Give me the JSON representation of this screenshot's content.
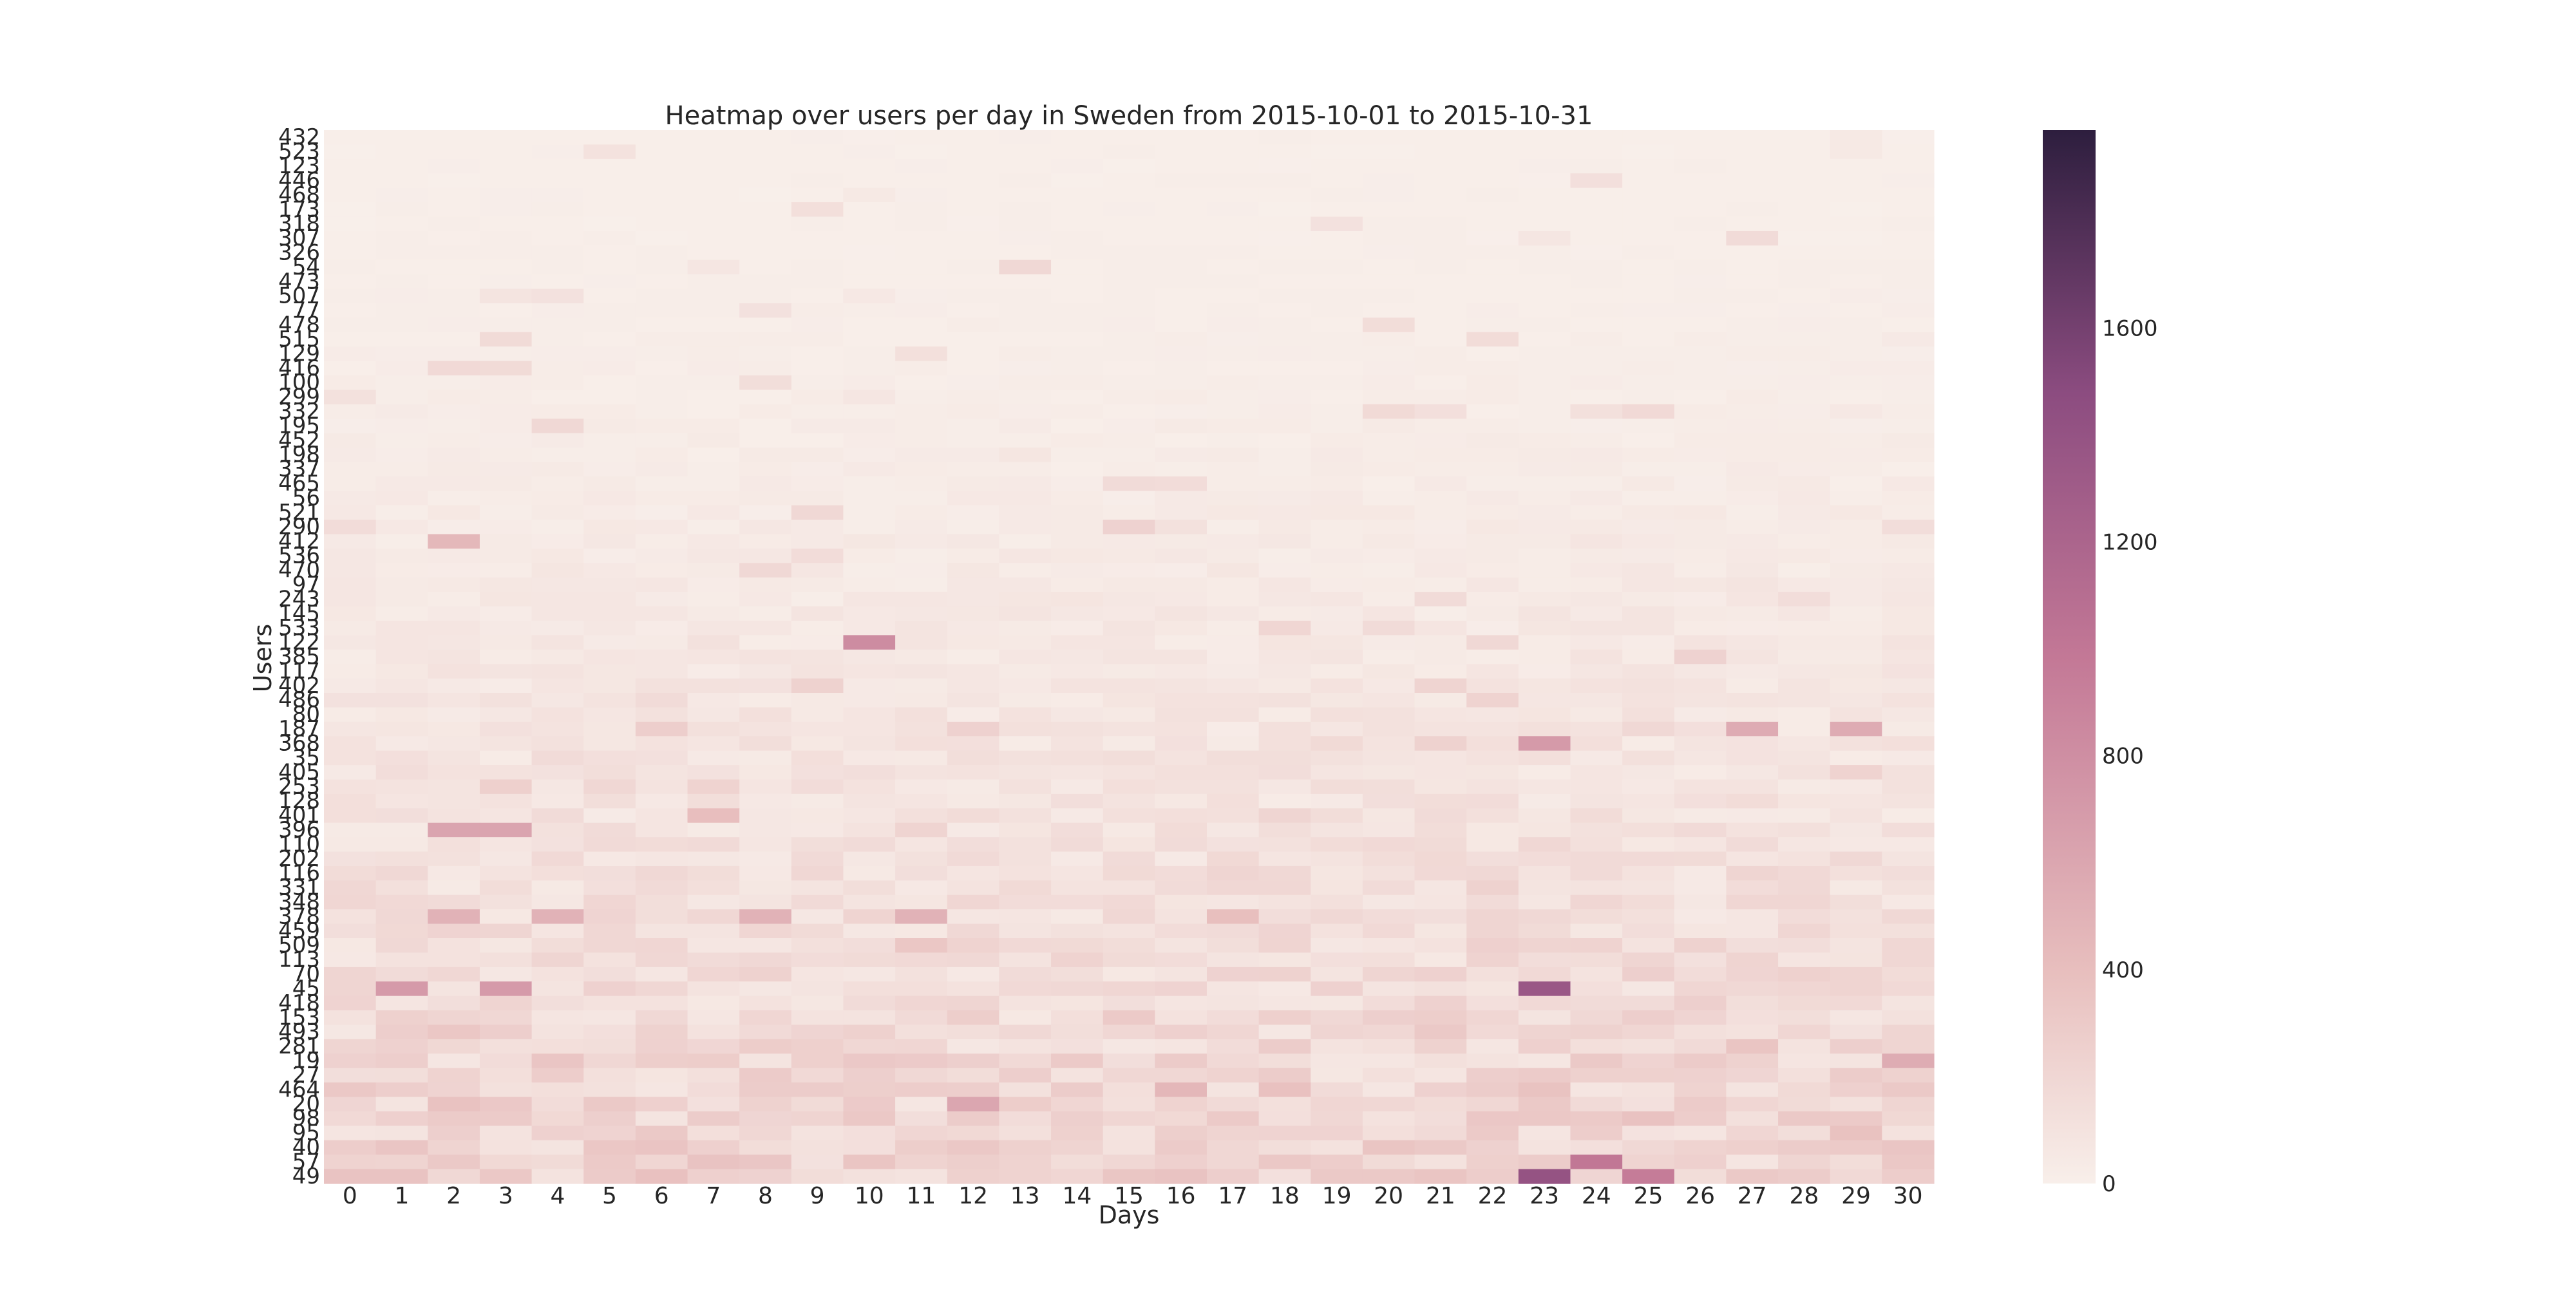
{
  "chart_data": {
    "type": "heatmap",
    "title": "Heatmap over users per day in Sweden from 2015-10-01 to 2015-10-31",
    "xlabel": "Days",
    "ylabel": "Users",
    "x": [
      "0",
      "1",
      "2",
      "3",
      "4",
      "5",
      "6",
      "7",
      "8",
      "9",
      "10",
      "11",
      "12",
      "13",
      "14",
      "15",
      "16",
      "17",
      "18",
      "19",
      "20",
      "21",
      "22",
      "23",
      "24",
      "25",
      "26",
      "27",
      "28",
      "29",
      "30"
    ],
    "y": [
      "432",
      "523",
      "123",
      "446",
      "468",
      "173",
      "318",
      "307",
      "326",
      "54",
      "473",
      "507",
      "77",
      "478",
      "515",
      "129",
      "416",
      "100",
      "299",
      "332",
      "195",
      "452",
      "198",
      "337",
      "465",
      "56",
      "521",
      "290",
      "412",
      "536",
      "470",
      "97",
      "243",
      "145",
      "533",
      "122",
      "385",
      "117",
      "402",
      "486",
      "80",
      "187",
      "368",
      "35",
      "405",
      "253",
      "128",
      "401",
      "396",
      "110",
      "202",
      "116",
      "331",
      "348",
      "378",
      "459",
      "509",
      "113",
      "70",
      "45",
      "418",
      "153",
      "493",
      "281",
      "19",
      "27",
      "464",
      "20",
      "98",
      "95",
      "40",
      "57",
      "49"
    ],
    "colorbar": {
      "ticks": [
        0,
        400,
        800,
        1200,
        1600
      ],
      "range": [
        0,
        1970
      ]
    },
    "colors": {
      "low": "#f8efea",
      "mid1": "#e8bfbe",
      "mid2": "#c37896",
      "mid3": "#8c4c80",
      "high": "#2d1e3e"
    },
    "notable_cells": [
      {
        "row": "396",
        "days": [
          2,
          3
        ],
        "value": 620
      },
      {
        "row": "45",
        "days": [
          23
        ],
        "value": 1350
      },
      {
        "row": "45",
        "days": [
          1,
          3
        ],
        "value": 700
      },
      {
        "row": "49",
        "days": [
          23
        ],
        "value": 1400
      },
      {
        "row": "57",
        "days": [
          24
        ],
        "value": 1000
      },
      {
        "row": "49",
        "days": [
          25
        ],
        "value": 950
      },
      {
        "row": "122",
        "days": [
          10
        ],
        "value": 820
      },
      {
        "row": "368",
        "days": [
          23
        ],
        "value": 700
      },
      {
        "row": "187",
        "days": [
          27,
          29
        ],
        "value": 560
      },
      {
        "row": "20",
        "days": [
          12
        ],
        "value": 600
      },
      {
        "row": "378",
        "days": [
          2,
          4,
          8,
          11
        ],
        "value": 500
      },
      {
        "row": "412",
        "days": [
          2
        ],
        "value": 450
      },
      {
        "row": "19",
        "days": [
          30
        ],
        "value": 550
      },
      {
        "row": "401",
        "days": [
          7
        ],
        "value": 400
      }
    ]
  }
}
